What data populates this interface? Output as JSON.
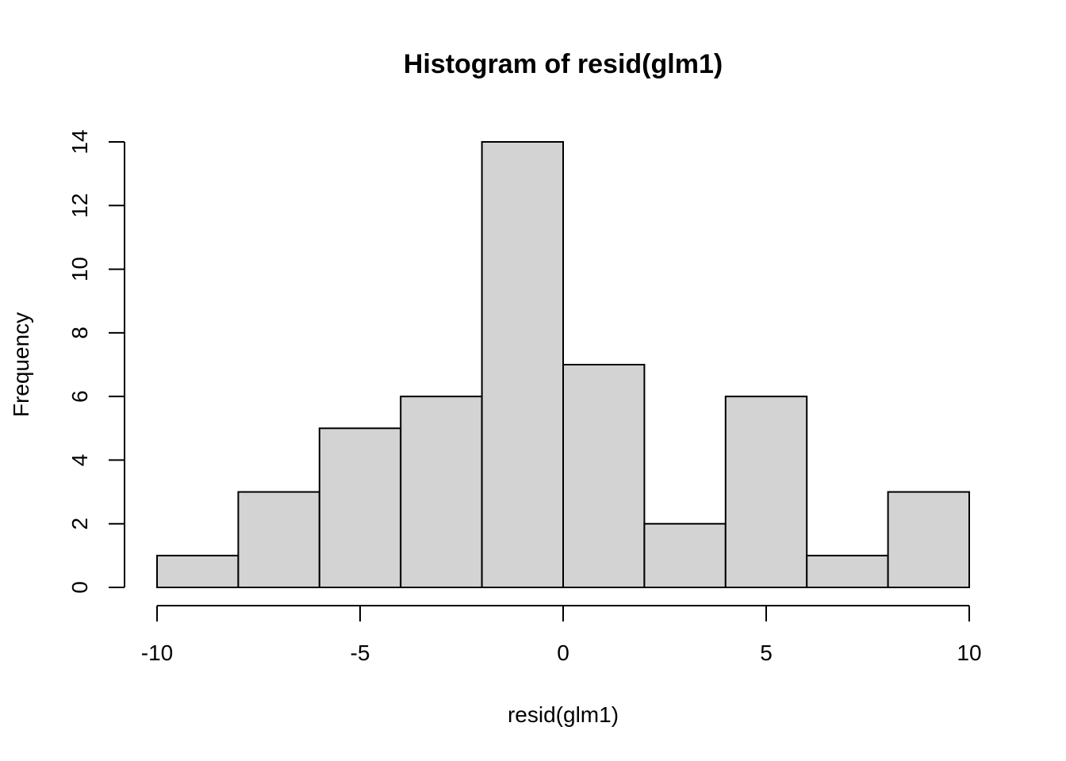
{
  "chart_data": {
    "type": "bar",
    "title": "Histogram of resid(glm1)",
    "xlabel": "resid(glm1)",
    "ylabel": "Frequency",
    "bins": [
      {
        "from": -10,
        "to": -8,
        "count": 1
      },
      {
        "from": -8,
        "to": -6,
        "count": 3
      },
      {
        "from": -6,
        "to": -4,
        "count": 5
      },
      {
        "from": -4,
        "to": -2,
        "count": 6
      },
      {
        "from": -2,
        "to": 0,
        "count": 14
      },
      {
        "from": 0,
        "to": 2,
        "count": 7
      },
      {
        "from": 2,
        "to": 4,
        "count": 2
      },
      {
        "from": 4,
        "to": 6,
        "count": 6
      },
      {
        "from": 6,
        "to": 8,
        "count": 1
      },
      {
        "from": 8,
        "to": 10,
        "count": 3
      }
    ],
    "xlim": [
      -10,
      10
    ],
    "ylim": [
      0,
      14
    ],
    "xticks": [
      -10,
      -5,
      0,
      5,
      10
    ],
    "yticks": [
      0,
      2,
      4,
      6,
      8,
      10,
      12,
      14
    ],
    "xtick_labels": [
      "-10",
      "-5",
      "0",
      "5",
      "10"
    ],
    "ytick_labels": [
      "0",
      "2",
      "4",
      "6",
      "8",
      "10",
      "12",
      "14"
    ],
    "bar_color": "#d3d3d3",
    "grid": false,
    "legend": "none"
  }
}
